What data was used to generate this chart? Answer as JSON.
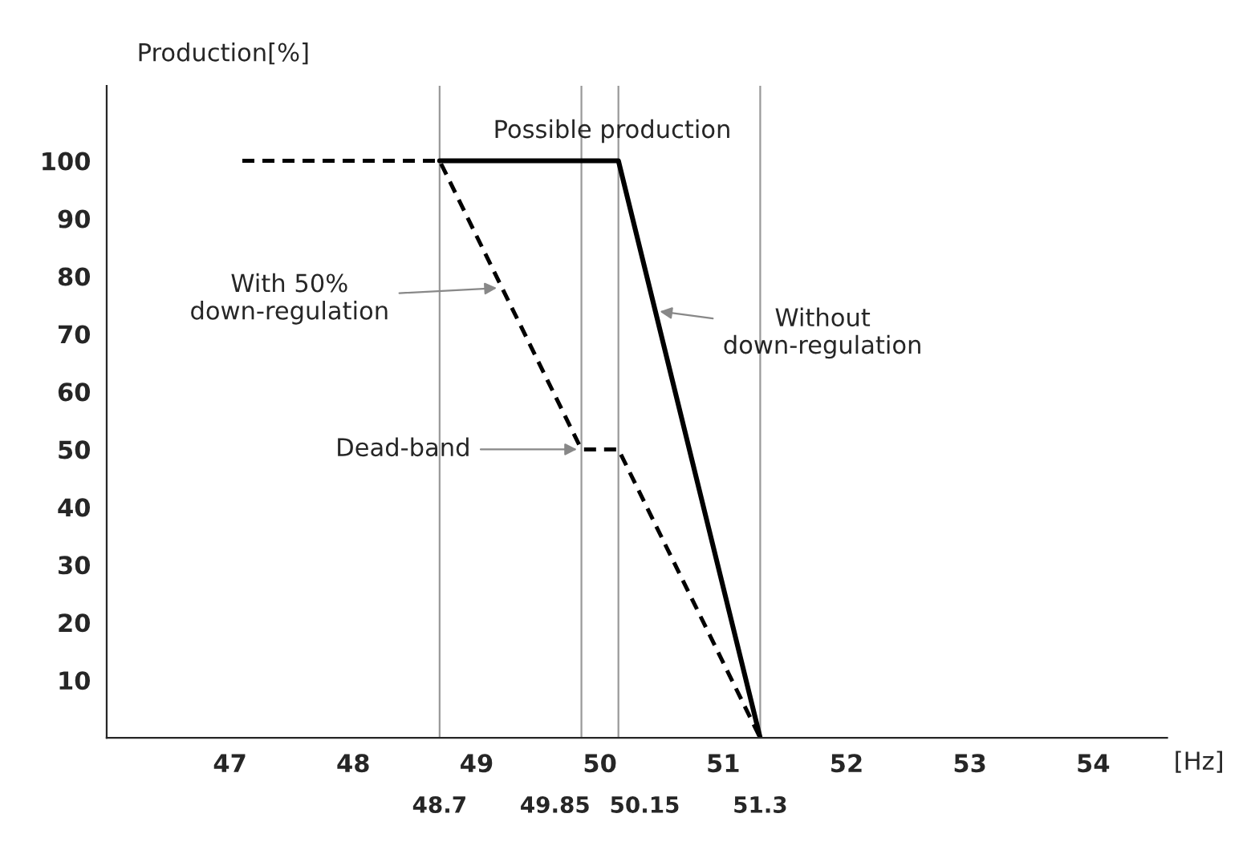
{
  "chart_data": {
    "type": "line",
    "xlabel": "[Hz]",
    "ylabel": "Production[%]",
    "xlim": [
      46.0,
      54.6
    ],
    "ylim": [
      0,
      113
    ],
    "xticks": [
      47,
      48,
      49,
      50,
      51,
      52,
      53,
      54
    ],
    "yticks": [
      10,
      20,
      30,
      40,
      50,
      60,
      70,
      80,
      90,
      100
    ],
    "grid": false,
    "legend": false,
    "marker": "none",
    "series": [
      {
        "color": "#000000",
        "line_style": "solid",
        "x": [
          48.7,
          50.15,
          51.3
        ],
        "values": [
          100,
          100,
          0
        ]
      },
      {
        "color": "#000000",
        "line_style": "dashed",
        "x": [
          47.1,
          48.7,
          49.85,
          50.15,
          51.3
        ],
        "values": [
          100,
          100,
          50,
          50,
          0
        ]
      }
    ],
    "ref_lines": [
      {
        "axis": "x",
        "value": 48.7,
        "label": "48.7",
        "color": "#999999"
      },
      {
        "axis": "x",
        "value": 49.85,
        "label": "49.85",
        "color": "#999999"
      },
      {
        "axis": "x",
        "value": 50.15,
        "label": "50.15",
        "color": "#999999"
      },
      {
        "axis": "x",
        "value": 51.3,
        "label": "51.3",
        "color": "#999999"
      }
    ],
    "annotations": [
      {
        "text": "Possible production",
        "x": 50.1,
        "y": 100
      },
      {
        "text": "With 50%\ndown-regulation",
        "x": 49.2,
        "y": 78
      },
      {
        "text": "Without\ndown-regulation",
        "x": 50.45,
        "y": 74
      },
      {
        "text": "Dead-band",
        "x": 49.85,
        "y": 50
      }
    ]
  }
}
